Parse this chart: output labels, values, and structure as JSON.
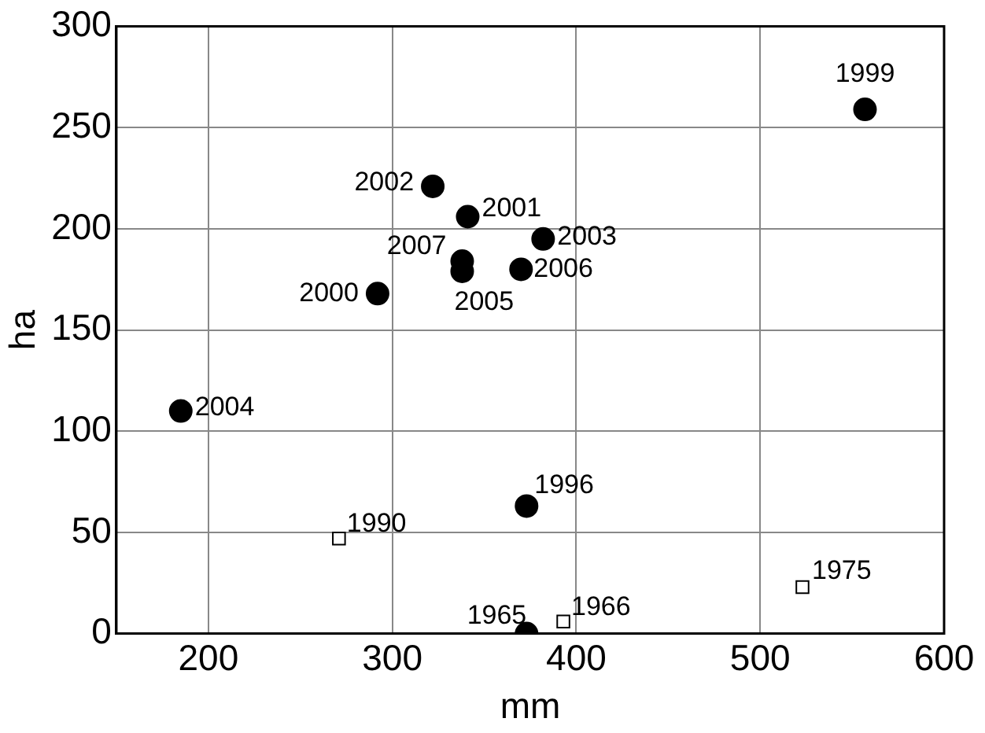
{
  "chart_data": {
    "type": "scatter",
    "xlabel": "mm",
    "ylabel": "ha",
    "series": [
      {
        "color": "#000000",
        "marker": "circle",
        "x": [
          322,
          341,
          382,
          338,
          338,
          370,
          292,
          557,
          185,
          373,
          373
        ],
        "values": [
          221,
          206,
          195,
          184,
          179,
          180,
          168,
          259,
          110,
          63,
          0
        ]
      },
      {
        "color": "#000000",
        "marker": "square",
        "x": [
          271,
          393,
          523
        ],
        "values": [
          47,
          6,
          23
        ]
      }
    ],
    "annotations": [
      {
        "text": "2002",
        "x": 322,
        "y": 221
      },
      {
        "text": "2001",
        "x": 341,
        "y": 206
      },
      {
        "text": "2003",
        "x": 382,
        "y": 195
      },
      {
        "text": "2007",
        "x": 338,
        "y": 184
      },
      {
        "text": "2005",
        "x": 338,
        "y": 179
      },
      {
        "text": "2006",
        "x": 370,
        "y": 180
      },
      {
        "text": "2000",
        "x": 292,
        "y": 168
      },
      {
        "text": "1999",
        "x": 557,
        "y": 259
      },
      {
        "text": "2004",
        "x": 185,
        "y": 110
      },
      {
        "text": "1996",
        "x": 373,
        "y": 63
      },
      {
        "text": "1965",
        "x": 373,
        "y": 0
      },
      {
        "text": "1990",
        "x": 271,
        "y": 47
      },
      {
        "text": "1966",
        "x": 393,
        "y": 6
      },
      {
        "text": "1975",
        "x": 523,
        "y": 23
      }
    ],
    "xlim": [
      150,
      600
    ],
    "xticks": [
      200,
      300,
      400,
      500,
      600
    ],
    "ylim": [
      0,
      300
    ],
    "yticks": [
      0,
      50,
      100,
      150,
      200,
      250,
      300
    ],
    "grid": true,
    "legend": false
  }
}
